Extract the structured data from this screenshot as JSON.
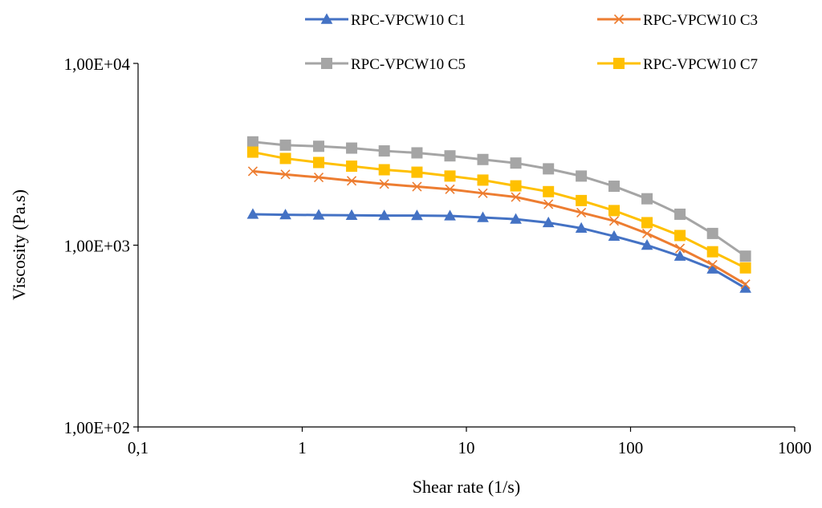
{
  "chart_data": {
    "type": "line",
    "title": "",
    "xlabel": "Shear rate (1/s)",
    "ylabel": "Viscosity (Pa.s)",
    "x_scale": "log",
    "y_scale": "log",
    "xlim": [
      0.1,
      1000
    ],
    "ylim": [
      100,
      10000
    ],
    "x_ticks": [
      {
        "value": 0.1,
        "label": "0,1"
      },
      {
        "value": 1,
        "label": "1"
      },
      {
        "value": 10,
        "label": "10"
      },
      {
        "value": 100,
        "label": "100"
      },
      {
        "value": 1000,
        "label": "1000"
      }
    ],
    "y_ticks": [
      {
        "value": 100,
        "label": "1,00E+02"
      },
      {
        "value": 1000,
        "label": "1,00E+03"
      },
      {
        "value": 10000,
        "label": "1,00E+04"
      }
    ],
    "grid": false,
    "legend_position": "top",
    "x": [
      0.5,
      0.79,
      1.26,
      2.0,
      3.16,
      5.0,
      7.94,
      12.6,
      20.0,
      31.6,
      50.1,
      79.4,
      126,
      200,
      316,
      501
    ],
    "series": [
      {
        "name": "RPC-VPCW10 C1",
        "color": "#4472C4",
        "marker": "triangle",
        "values": [
          1480,
          1470,
          1465,
          1460,
          1455,
          1455,
          1450,
          1420,
          1390,
          1330,
          1240,
          1120,
          1000,
          870,
          740,
          580
        ]
      },
      {
        "name": "RPC-VPCW10 C3",
        "color": "#ED7D31",
        "marker": "x",
        "values": [
          2550,
          2450,
          2360,
          2260,
          2170,
          2100,
          2030,
          1930,
          1840,
          1680,
          1510,
          1360,
          1160,
          960,
          780,
          610
        ]
      },
      {
        "name": "RPC-VPCW10 C5",
        "color": "#A5A5A5",
        "marker": "square",
        "values": [
          3700,
          3550,
          3500,
          3420,
          3300,
          3220,
          3100,
          2960,
          2830,
          2630,
          2400,
          2110,
          1800,
          1480,
          1160,
          870
        ]
      },
      {
        "name": "RPC-VPCW10 C7",
        "color": "#FFC000",
        "marker": "square",
        "values": [
          3250,
          3000,
          2850,
          2720,
          2600,
          2520,
          2400,
          2280,
          2120,
          1970,
          1760,
          1550,
          1330,
          1130,
          920,
          750
        ]
      }
    ]
  }
}
